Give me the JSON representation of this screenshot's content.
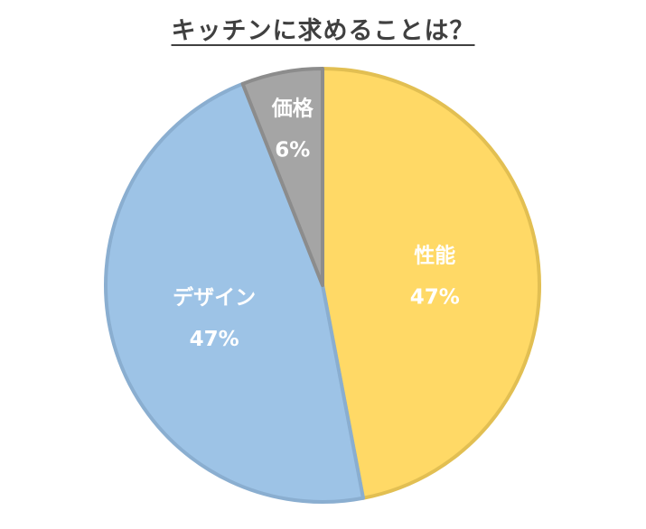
{
  "chart_data": {
    "type": "pie",
    "title": "キッチンに求めることは？",
    "slices": [
      {
        "label": "性能",
        "value": 47,
        "value_label": "47%",
        "fill": "#FFD966",
        "stroke": "#E2BF52"
      },
      {
        "label": "デザイン",
        "value": 47,
        "value_label": "47%",
        "fill": "#9DC3E6",
        "stroke": "#8AAED0"
      },
      {
        "label": "価格",
        "value": 6,
        "value_label": "6%",
        "fill": "#A5A5A5",
        "stroke": "#8C8C8C"
      }
    ],
    "start": "12 o'clock",
    "direction": "clockwise",
    "legend": "none",
    "labels": "inside slices"
  }
}
